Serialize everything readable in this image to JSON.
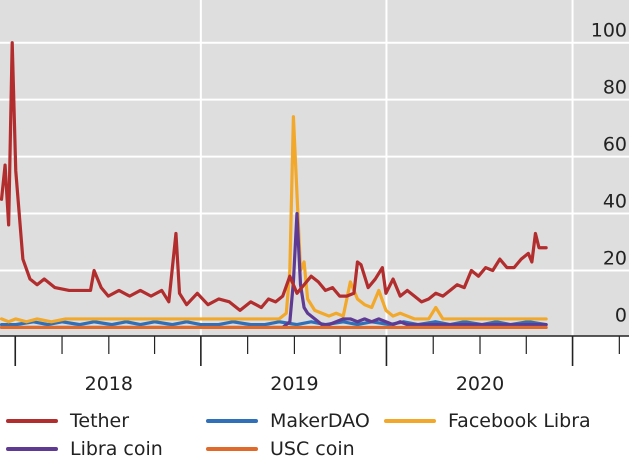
{
  "chart_data": {
    "type": "line",
    "title": "",
    "xlabel": "",
    "ylabel": "",
    "ylim": [
      -3,
      115
    ],
    "xlim": [
      "2017-06-01",
      "2020-10-20"
    ],
    "y_axis_position": "right",
    "grid": true,
    "legend_position": "bottom",
    "x_ticks": [
      {
        "label": "2018",
        "center": "2018-01-01"
      },
      {
        "label": "2019",
        "center": "2019-01-01"
      },
      {
        "label": "2020",
        "center": "2020-01-01"
      }
    ],
    "y_ticks": [
      "0",
      "20",
      "40",
      "60",
      "80",
      "100"
    ],
    "y_tick_values": [
      0,
      20,
      40,
      60,
      80,
      100
    ],
    "series": [
      {
        "name": "Tether",
        "color": "#b22d2d",
        "points": [
          [
            "2017-06-04",
            45
          ],
          [
            "2017-06-11",
            57
          ],
          [
            "2017-06-18",
            36
          ],
          [
            "2017-06-25",
            100
          ],
          [
            "2017-07-02",
            55
          ],
          [
            "2017-07-16",
            24
          ],
          [
            "2017-07-30",
            17
          ],
          [
            "2017-08-13",
            15
          ],
          [
            "2017-08-27",
            17
          ],
          [
            "2017-09-17",
            14
          ],
          [
            "2017-10-15",
            13
          ],
          [
            "2017-11-12",
            13
          ],
          [
            "2017-11-26",
            13
          ],
          [
            "2017-12-03",
            20
          ],
          [
            "2017-12-17",
            14
          ],
          [
            "2017-12-31",
            11
          ],
          [
            "2018-01-21",
            13
          ],
          [
            "2018-02-11",
            11
          ],
          [
            "2018-03-04",
            13
          ],
          [
            "2018-03-25",
            11
          ],
          [
            "2018-04-15",
            13
          ],
          [
            "2018-04-29",
            9
          ],
          [
            "2018-05-13",
            33
          ],
          [
            "2018-05-20",
            12
          ],
          [
            "2018-06-03",
            8
          ],
          [
            "2018-06-24",
            12
          ],
          [
            "2018-07-15",
            8
          ],
          [
            "2018-08-05",
            10
          ],
          [
            "2018-08-26",
            9
          ],
          [
            "2018-09-16",
            6
          ],
          [
            "2018-10-07",
            9
          ],
          [
            "2018-10-28",
            7
          ],
          [
            "2018-11-11",
            10
          ],
          [
            "2018-11-25",
            9
          ],
          [
            "2018-12-09",
            11
          ],
          [
            "2018-12-23",
            18
          ],
          [
            "2019-01-06",
            12
          ],
          [
            "2019-01-20",
            15
          ],
          [
            "2019-02-03",
            18
          ],
          [
            "2019-02-17",
            16
          ],
          [
            "2019-03-03",
            13
          ],
          [
            "2019-03-17",
            14
          ],
          [
            "2019-03-31",
            11
          ],
          [
            "2019-04-14",
            11
          ],
          [
            "2019-04-28",
            12
          ],
          [
            "2019-05-05",
            23
          ],
          [
            "2019-05-12",
            22
          ],
          [
            "2019-05-26",
            14
          ],
          [
            "2019-06-09",
            17
          ],
          [
            "2019-06-23",
            21
          ],
          [
            "2019-06-30",
            12
          ],
          [
            "2019-07-14",
            17
          ],
          [
            "2019-07-28",
            11
          ],
          [
            "2019-08-11",
            13
          ],
          [
            "2019-08-25",
            11
          ],
          [
            "2019-09-08",
            9
          ],
          [
            "2019-09-22",
            10
          ],
          [
            "2019-10-06",
            12
          ],
          [
            "2019-10-20",
            11
          ],
          [
            "2019-11-03",
            13
          ],
          [
            "2019-11-17",
            15
          ],
          [
            "2019-12-01",
            14
          ],
          [
            "2019-12-15",
            20
          ],
          [
            "2019-12-29",
            18
          ],
          [
            "2020-01-12",
            21
          ],
          [
            "2020-01-26",
            20
          ],
          [
            "2020-02-09",
            24
          ],
          [
            "2020-02-23",
            21
          ],
          [
            "2020-03-08",
            21
          ],
          [
            "2020-03-22",
            24
          ],
          [
            "2020-04-05",
            26
          ],
          [
            "2020-04-12",
            23
          ],
          [
            "2020-04-19",
            33
          ],
          [
            "2020-04-26",
            28
          ],
          [
            "2020-05-10",
            28
          ]
        ]
      },
      {
        "name": "MakerDAO",
        "color": "#2f70b8",
        "points": [
          [
            "2017-06-04",
            1
          ],
          [
            "2017-07-02",
            1
          ],
          [
            "2017-08-06",
            2
          ],
          [
            "2017-09-03",
            1
          ],
          [
            "2017-10-01",
            2
          ],
          [
            "2017-11-05",
            1
          ],
          [
            "2017-12-03",
            2
          ],
          [
            "2018-01-07",
            1
          ],
          [
            "2018-02-04",
            2
          ],
          [
            "2018-03-04",
            1
          ],
          [
            "2018-04-01",
            2
          ],
          [
            "2018-05-06",
            1
          ],
          [
            "2018-06-03",
            2
          ],
          [
            "2018-07-01",
            1
          ],
          [
            "2018-08-05",
            1
          ],
          [
            "2018-09-02",
            2
          ],
          [
            "2018-10-07",
            1
          ],
          [
            "2018-11-04",
            1
          ],
          [
            "2018-12-02",
            2
          ],
          [
            "2019-01-06",
            1
          ],
          [
            "2019-02-03",
            2
          ],
          [
            "2019-03-03",
            1
          ],
          [
            "2019-04-07",
            2
          ],
          [
            "2019-05-05",
            1
          ],
          [
            "2019-06-02",
            2
          ],
          [
            "2019-07-07",
            1
          ],
          [
            "2019-08-04",
            2
          ],
          [
            "2019-09-01",
            1
          ],
          [
            "2019-10-06",
            2
          ],
          [
            "2019-11-03",
            1
          ],
          [
            "2019-12-01",
            2
          ],
          [
            "2020-01-05",
            1
          ],
          [
            "2020-02-02",
            2
          ],
          [
            "2020-03-01",
            1
          ],
          [
            "2020-04-05",
            2
          ],
          [
            "2020-05-10",
            1
          ]
        ]
      },
      {
        "name": "Facebook Libra",
        "color": "#f2a82a",
        "points": [
          [
            "2017-06-04",
            3
          ],
          [
            "2017-06-18",
            2
          ],
          [
            "2017-07-02",
            3
          ],
          [
            "2017-07-23",
            2
          ],
          [
            "2017-08-13",
            3
          ],
          [
            "2017-09-10",
            2
          ],
          [
            "2017-10-08",
            3
          ],
          [
            "2017-11-12",
            3
          ],
          [
            "2017-12-17",
            3
          ],
          [
            "2018-01-21",
            3
          ],
          [
            "2018-03-04",
            3
          ],
          [
            "2018-04-15",
            3
          ],
          [
            "2018-05-27",
            3
          ],
          [
            "2018-07-08",
            3
          ],
          [
            "2018-08-19",
            3
          ],
          [
            "2018-09-30",
            3
          ],
          [
            "2018-11-11",
            3
          ],
          [
            "2018-12-02",
            3
          ],
          [
            "2018-12-16",
            5
          ],
          [
            "2018-12-23",
            20
          ],
          [
            "2018-12-30",
            74
          ],
          [
            "2019-01-06",
            47
          ],
          [
            "2019-01-13",
            20
          ],
          [
            "2019-01-20",
            23
          ],
          [
            "2019-01-27",
            10
          ],
          [
            "2019-02-10",
            6
          ],
          [
            "2019-02-24",
            5
          ],
          [
            "2019-03-10",
            4
          ],
          [
            "2019-03-24",
            5
          ],
          [
            "2019-04-07",
            4
          ],
          [
            "2019-04-21",
            16
          ],
          [
            "2019-05-05",
            10
          ],
          [
            "2019-05-19",
            8
          ],
          [
            "2019-06-02",
            7
          ],
          [
            "2019-06-16",
            13
          ],
          [
            "2019-06-30",
            6
          ],
          [
            "2019-07-14",
            4
          ],
          [
            "2019-07-28",
            5
          ],
          [
            "2019-08-11",
            4
          ],
          [
            "2019-08-25",
            3
          ],
          [
            "2019-09-08",
            3
          ],
          [
            "2019-09-22",
            3
          ],
          [
            "2019-10-06",
            7
          ],
          [
            "2019-10-20",
            3
          ],
          [
            "2019-11-03",
            3
          ],
          [
            "2019-11-24",
            3
          ],
          [
            "2019-12-15",
            3
          ],
          [
            "2020-01-12",
            3
          ],
          [
            "2020-02-09",
            3
          ],
          [
            "2020-03-08",
            3
          ],
          [
            "2020-04-05",
            3
          ],
          [
            "2020-05-10",
            3
          ]
        ]
      },
      {
        "name": "Libra coin",
        "color": "#5e3a93",
        "points": [
          [
            "2017-06-04",
            0
          ],
          [
            "2018-12-09",
            0
          ],
          [
            "2018-12-23",
            2
          ],
          [
            "2018-12-30",
            16
          ],
          [
            "2019-01-06",
            40
          ],
          [
            "2019-01-13",
            15
          ],
          [
            "2019-01-20",
            7
          ],
          [
            "2019-01-27",
            5
          ],
          [
            "2019-02-10",
            3
          ],
          [
            "2019-02-24",
            1
          ],
          [
            "2019-03-10",
            1
          ],
          [
            "2019-03-24",
            2
          ],
          [
            "2019-04-07",
            3
          ],
          [
            "2019-04-21",
            3
          ],
          [
            "2019-05-05",
            2
          ],
          [
            "2019-05-19",
            3
          ],
          [
            "2019-06-02",
            2
          ],
          [
            "2019-06-16",
            3
          ],
          [
            "2019-06-30",
            2
          ],
          [
            "2019-07-14",
            1
          ],
          [
            "2019-07-28",
            2
          ],
          [
            "2019-08-11",
            1
          ],
          [
            "2019-09-08",
            1
          ],
          [
            "2019-10-06",
            1
          ],
          [
            "2019-11-03",
            1
          ],
          [
            "2019-12-01",
            1
          ],
          [
            "2020-01-05",
            1
          ],
          [
            "2020-02-02",
            1
          ],
          [
            "2020-03-01",
            1
          ],
          [
            "2020-04-05",
            1
          ],
          [
            "2020-05-10",
            1
          ]
        ]
      },
      {
        "name": "USC coin",
        "color": "#e06a2a",
        "points": [
          [
            "2017-06-04",
            0
          ],
          [
            "2017-12-31",
            0
          ],
          [
            "2018-06-30",
            0
          ],
          [
            "2018-12-31",
            0
          ],
          [
            "2019-06-30",
            0
          ],
          [
            "2019-12-31",
            0
          ],
          [
            "2020-05-10",
            0
          ]
        ]
      }
    ]
  }
}
